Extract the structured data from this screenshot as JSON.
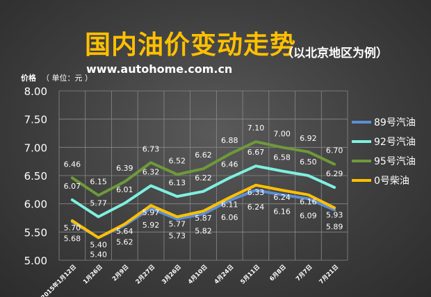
{
  "header": {
    "title": "国内油价变动走势",
    "subtitle": "（以北京地区为例）",
    "site": "www.autohome.com.cn",
    "unit_label": "价格",
    "unit_value": "（ 单位：元 ）"
  },
  "chart_data": {
    "type": "line",
    "categories": [
      "2015年1月12日",
      "1月26日",
      "2月9日",
      "2月27日",
      "3月26日",
      "4月10日",
      "4月24日",
      "5月11日",
      "6月8日",
      "7月7日",
      "7月21日"
    ],
    "ylim": [
      5.0,
      8.0
    ],
    "yticks": [
      "5.00",
      "5.50",
      "6.00",
      "6.50",
      "7.00",
      "7.50",
      "8.00"
    ],
    "grid": true,
    "legend": "right",
    "series": [
      {
        "name": "89号汽油",
        "color": "#5b8fd6",
        "values": [
          5.68,
          5.4,
          5.62,
          5.92,
          5.73,
          5.82,
          6.06,
          6.24,
          6.16,
          6.09,
          5.89
        ],
        "labels": [
          "5.68",
          "5.40",
          "5.62",
          "5.92",
          "5.73",
          "5.82",
          "6.06",
          "6.24",
          "6.16",
          "6.09",
          "5.89"
        ]
      },
      {
        "name": "92号汽油",
        "color": "#7ff0e0",
        "values": [
          6.07,
          5.77,
          6.01,
          6.32,
          6.13,
          6.22,
          6.46,
          6.67,
          6.58,
          6.5,
          6.29
        ],
        "labels": [
          "6.07",
          "5.77",
          "6.01",
          "6.32",
          "6.13",
          "6.22",
          "6.46",
          "6.67",
          "6.58",
          "6.50",
          "6.29"
        ]
      },
      {
        "name": "95号汽油",
        "color": "#6e9a3a",
        "values": [
          6.46,
          6.15,
          6.39,
          6.73,
          6.52,
          6.62,
          6.88,
          7.1,
          7.0,
          6.92,
          6.7
        ],
        "labels": [
          "6.46",
          "6.15",
          "6.39",
          "6.73",
          "6.52",
          "6.62",
          "6.88",
          "7.10",
          "7.00",
          "6.92",
          "6.70"
        ]
      },
      {
        "name": "0号柴油",
        "color": "#ffc000",
        "values": [
          5.7,
          5.4,
          5.64,
          5.97,
          5.77,
          5.87,
          6.11,
          6.33,
          6.24,
          6.16,
          5.93
        ],
        "labels": [
          "5.70",
          "5.40",
          "5.64",
          "5.97",
          "5.77",
          "5.87",
          "6.11",
          "6.33",
          "6.24",
          "6.16",
          "5.93"
        ]
      }
    ]
  }
}
